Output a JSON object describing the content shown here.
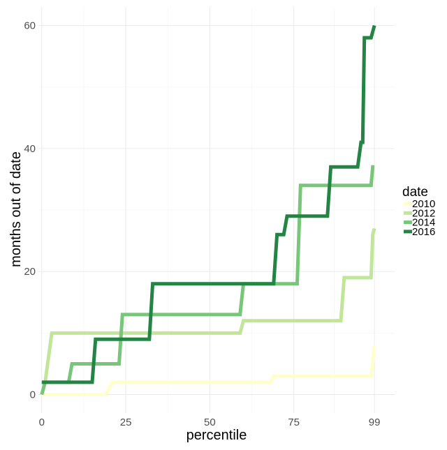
{
  "chart_data": {
    "type": "line",
    "xlabel": "percentile",
    "ylabel": "months out of date",
    "xlim": [
      -1,
      105
    ],
    "ylim": [
      -3,
      63
    ],
    "x_ticks": [
      0,
      25,
      50,
      75,
      99
    ],
    "x_tick_labels": [
      "0",
      "25",
      "50",
      "75",
      "99"
    ],
    "y_ticks": [
      0,
      20,
      40,
      60
    ],
    "y_tick_labels": [
      "0",
      "20",
      "40",
      "60"
    ],
    "grid": true,
    "legend": {
      "title": "date",
      "position": "right"
    },
    "series": [
      {
        "name": "2010",
        "color": "#ffffcc",
        "points": [
          [
            0,
            0
          ],
          [
            19,
            0
          ],
          [
            20,
            1
          ],
          [
            21,
            2
          ],
          [
            68,
            2
          ],
          [
            69,
            3
          ],
          [
            98,
            3
          ],
          [
            99,
            8
          ]
        ]
      },
      {
        "name": "2012",
        "color": "#c2e699",
        "points": [
          [
            0,
            0
          ],
          [
            1,
            2
          ],
          [
            2,
            6
          ],
          [
            3,
            10
          ],
          [
            59,
            10
          ],
          [
            60,
            12
          ],
          [
            89,
            12
          ],
          [
            90,
            19
          ],
          [
            98,
            19
          ],
          [
            98.5,
            26
          ],
          [
            99,
            27
          ]
        ]
      },
      {
        "name": "2014",
        "color": "#78c679",
        "points": [
          [
            0,
            0
          ],
          [
            1,
            2
          ],
          [
            8,
            2
          ],
          [
            9,
            5
          ],
          [
            23,
            5
          ],
          [
            24,
            13
          ],
          [
            59,
            13
          ],
          [
            60,
            18
          ],
          [
            76,
            18
          ],
          [
            77,
            34
          ],
          [
            98,
            34
          ],
          [
            98.5,
            37
          ],
          [
            99,
            37
          ]
        ]
      },
      {
        "name": "2016",
        "color": "#238443",
        "points": [
          [
            0,
            2
          ],
          [
            15,
            2
          ],
          [
            16,
            9
          ],
          [
            32,
            9
          ],
          [
            33,
            18
          ],
          [
            69,
            18
          ],
          [
            70,
            26
          ],
          [
            72,
            26
          ],
          [
            73,
            29
          ],
          [
            85,
            29
          ],
          [
            86,
            37
          ],
          [
            94,
            37
          ],
          [
            95,
            41
          ],
          [
            95.5,
            41
          ],
          [
            96,
            58
          ],
          [
            98,
            58
          ],
          [
            99,
            60
          ]
        ]
      }
    ]
  }
}
